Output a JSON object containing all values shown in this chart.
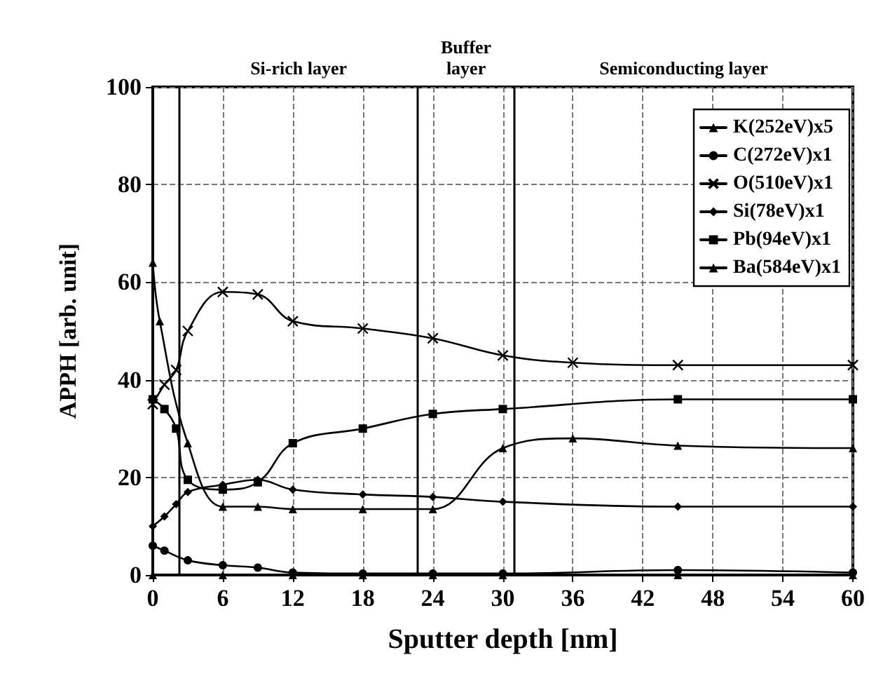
{
  "chart_data": {
    "type": "line",
    "xlabel": "Sputter depth [nm]",
    "ylabel": "APPH [arb. unit]",
    "xlim": [
      0,
      60
    ],
    "xticks": [
      0,
      6,
      12,
      18,
      24,
      30,
      36,
      42,
      48,
      54,
      60
    ],
    "ylim": [
      0,
      100
    ],
    "yticks": [
      0,
      20,
      40,
      60,
      80,
      100
    ],
    "grid": true,
    "legend": "top right",
    "line_style": "solid",
    "series": [
      {
        "name": "K(252eV)x5",
        "color": "#000000",
        "marker": "triangle",
        "x": [
          0,
          0.6,
          3,
          6,
          9,
          12,
          18,
          24,
          30,
          36,
          45,
          60
        ],
        "values": [
          64,
          52,
          27,
          14,
          14,
          13.5,
          13.5,
          13.5,
          26,
          28,
          26.5,
          26
        ]
      },
      {
        "name": "C(272eV)x1",
        "color": "#000000",
        "marker": "circle",
        "x": [
          0,
          1,
          3,
          6,
          9,
          12,
          18,
          24,
          30,
          45,
          60
        ],
        "values": [
          6,
          5,
          3,
          2,
          1.5,
          0.5,
          0.3,
          0.3,
          0.3,
          1,
          0.5
        ]
      },
      {
        "name": "O(510eV)x1",
        "color": "#000000",
        "marker": "cross",
        "x": [
          0,
          1,
          2,
          3,
          6,
          9,
          12,
          18,
          24,
          30,
          36,
          45,
          60
        ],
        "values": [
          35,
          39,
          42,
          50,
          58,
          57.5,
          52,
          50.5,
          48.5,
          45,
          43.5,
          43,
          43
        ]
      },
      {
        "name": "Si(78eV)x1",
        "color": "#000000",
        "marker": "diamond",
        "x": [
          0,
          1,
          2,
          3,
          6,
          9,
          12,
          18,
          24,
          30,
          45,
          60
        ],
        "values": [
          10,
          12,
          14.5,
          17,
          18.5,
          19.5,
          17.5,
          16.5,
          16,
          15,
          14,
          14
        ]
      },
      {
        "name": "Pb(94eV)x1",
        "color": "#000000",
        "marker": "square",
        "x": [
          0,
          1,
          2,
          3,
          6,
          9,
          12,
          18,
          24,
          30,
          45,
          60
        ],
        "values": [
          36,
          34,
          30,
          19.5,
          17.5,
          19,
          27,
          30,
          33,
          34,
          36,
          36
        ]
      },
      {
        "name": "Ba(584eV)x1",
        "color": "#000000",
        "marker": "triangle",
        "x": [
          0,
          6,
          12,
          18,
          24,
          30,
          45,
          60
        ],
        "values": [
          0,
          0,
          0,
          0,
          0,
          0,
          0,
          0
        ]
      }
    ],
    "ref_lines": [
      {
        "axis": "x",
        "value": 2.3,
        "color": "#000000"
      },
      {
        "axis": "x",
        "value": 22.7,
        "color": "#000000"
      },
      {
        "axis": "x",
        "value": 31,
        "color": "#000000"
      }
    ],
    "annotations": [
      "Si-rich layer",
      "Buffer\nlayer",
      "Semiconducting layer"
    ]
  }
}
